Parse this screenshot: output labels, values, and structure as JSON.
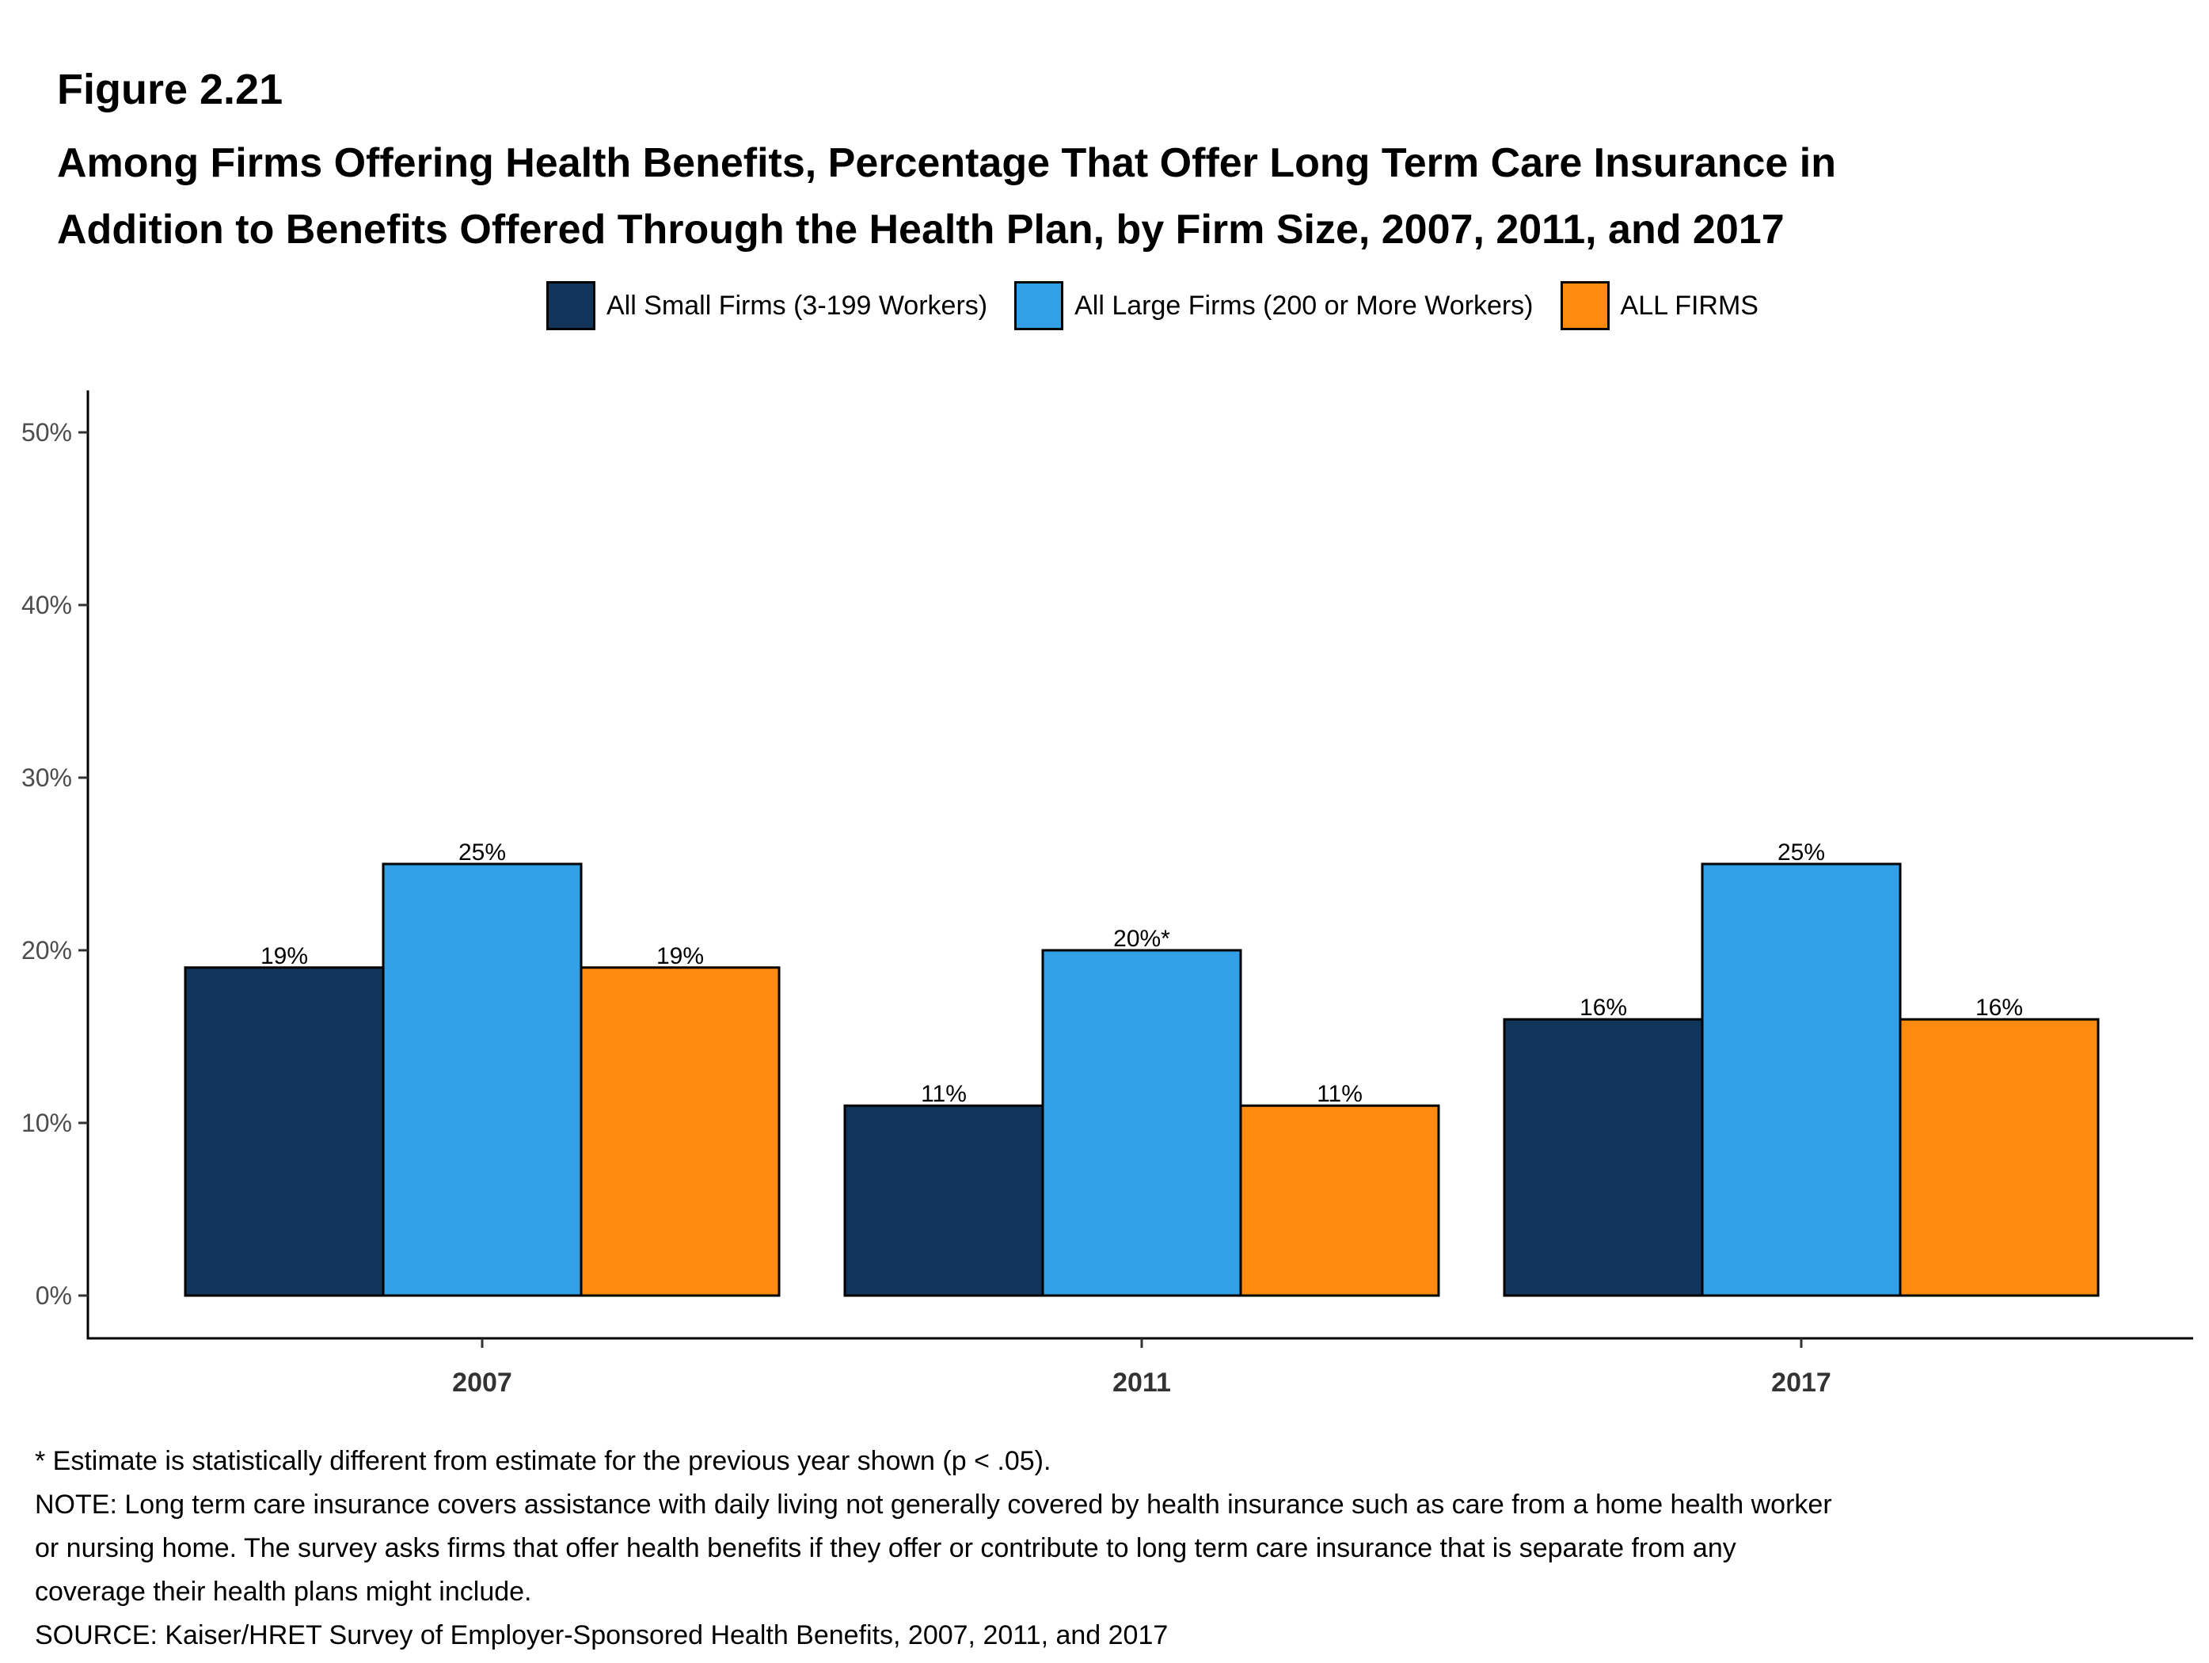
{
  "figure": {
    "number": "Figure 2.21",
    "title_line1": "Among Firms Offering Health Benefits, Percentage That Offer Long Term Care Insurance in",
    "title_line2": "Addition to Benefits Offered Through the Health Plan, by Firm Size, 2007, 2011, and 2017"
  },
  "chart_data": {
    "type": "bar",
    "categories": [
      "2007",
      "2011",
      "2017"
    ],
    "series": [
      {
        "name": "All Small Firms (3-199 Workers)",
        "color": "#12355b",
        "values": [
          19,
          11,
          16
        ],
        "labels": [
          "19%",
          "11%",
          "16%"
        ]
      },
      {
        "name": "All Large Firms (200 or More Workers)",
        "color": "#31a0e6",
        "values": [
          25,
          20,
          25
        ],
        "labels": [
          "25%",
          "20%*",
          "25%"
        ]
      },
      {
        "name": "ALL FIRMS",
        "color": "#ff8a10",
        "values": [
          19,
          11,
          16
        ],
        "labels": [
          "19%",
          "11%",
          "16%"
        ]
      }
    ],
    "yticks": [
      0,
      10,
      20,
      30,
      40,
      50
    ],
    "ytick_labels": [
      "0%",
      "10%",
      "20%",
      "30%",
      "40%",
      "50%"
    ],
    "ylim": [
      0,
      52.4
    ],
    "xlabel": "",
    "ylabel": "",
    "legend_position": "top-center",
    "grid": false
  },
  "notes": {
    "line1": "* Estimate is statistically different from estimate for the previous year shown (p < .05).",
    "line2": "NOTE: Long term care insurance covers assistance with daily living not generally covered by health insurance such as care from a home health worker",
    "line3": "or nursing home. The survey asks firms that offer health benefits if they offer or contribute to long term care insurance that is separate from any",
    "line4": "coverage their health plans might include.",
    "line5": "SOURCE: Kaiser/HRET Survey of Employer-Sponsored Health Benefits, 2007, 2011, and 2017"
  }
}
